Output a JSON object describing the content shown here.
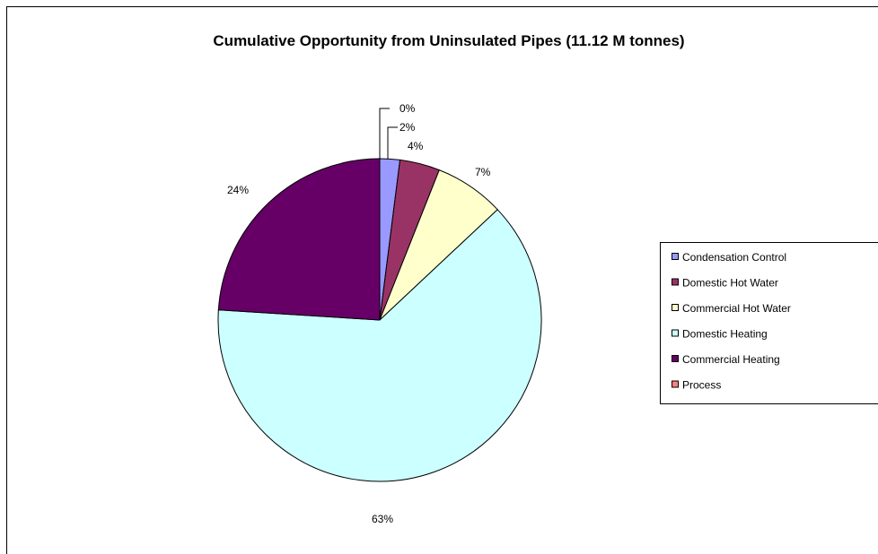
{
  "chart_data": {
    "type": "pie",
    "title": "Cumulative Opportunity from Uninsulated Pipes (11.12 M tonnes)",
    "series": [
      {
        "name": "Process",
        "value": 0,
        "label": "0%",
        "color": "#ff8080"
      },
      {
        "name": "Condensation Control",
        "value": 2,
        "label": "2%",
        "color": "#9999ff"
      },
      {
        "name": "Domestic Hot Water",
        "value": 4,
        "label": "4%",
        "color": "#993366"
      },
      {
        "name": "Commercial Hot Water",
        "value": 7,
        "label": "7%",
        "color": "#ffffcc"
      },
      {
        "name": "Domestic Heating",
        "value": 63,
        "label": "63%",
        "color": "#ccffff"
      },
      {
        "name": "Commercial Heating",
        "value": 24,
        "label": "24%",
        "color": "#660066"
      }
    ],
    "legend": {
      "position": "right",
      "entries": [
        {
          "name": "Condensation Control",
          "color": "#9999ff"
        },
        {
          "name": "Domestic Hot Water",
          "color": "#993366"
        },
        {
          "name": "Commercial Hot Water",
          "color": "#ffffcc"
        },
        {
          "name": "Domestic Heating",
          "color": "#ccffff"
        },
        {
          "name": "Commercial Heating",
          "color": "#660066"
        },
        {
          "name": "Process",
          "color": "#ff8080"
        }
      ]
    }
  }
}
